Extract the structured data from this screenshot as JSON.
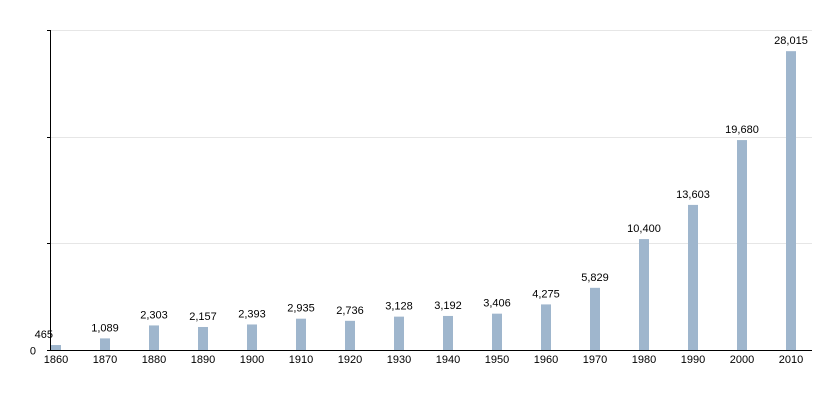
{
  "chart_data": {
    "type": "bar",
    "title": "",
    "xlabel": "",
    "ylabel": "",
    "categories": [
      "1860",
      "1870",
      "1880",
      "1890",
      "1900",
      "1910",
      "1920",
      "1930",
      "1940",
      "1950",
      "1960",
      "1970",
      "1980",
      "1990",
      "2000",
      "2010"
    ],
    "values": [
      465,
      1089,
      2303,
      2157,
      2393,
      2935,
      2736,
      3128,
      3192,
      3406,
      4275,
      5829,
      10400,
      13603,
      19680,
      28015
    ],
    "data_labels": [
      "465",
      "1,089",
      "2,303",
      "2,157",
      "2,393",
      "2,935",
      "2,736",
      "3,128",
      "3,192",
      "3,406",
      "4,275",
      "5,829",
      "10,400",
      "13,603",
      "19,680",
      "28,015"
    ],
    "ylim": [
      0,
      30000
    ],
    "y_ticks": [
      0,
      10000,
      20000,
      30000
    ],
    "y_tick_labels": [
      "0",
      "",
      "",
      ""
    ],
    "grid": true,
    "legend": "none",
    "bar_color": "#9fb6cd"
  }
}
